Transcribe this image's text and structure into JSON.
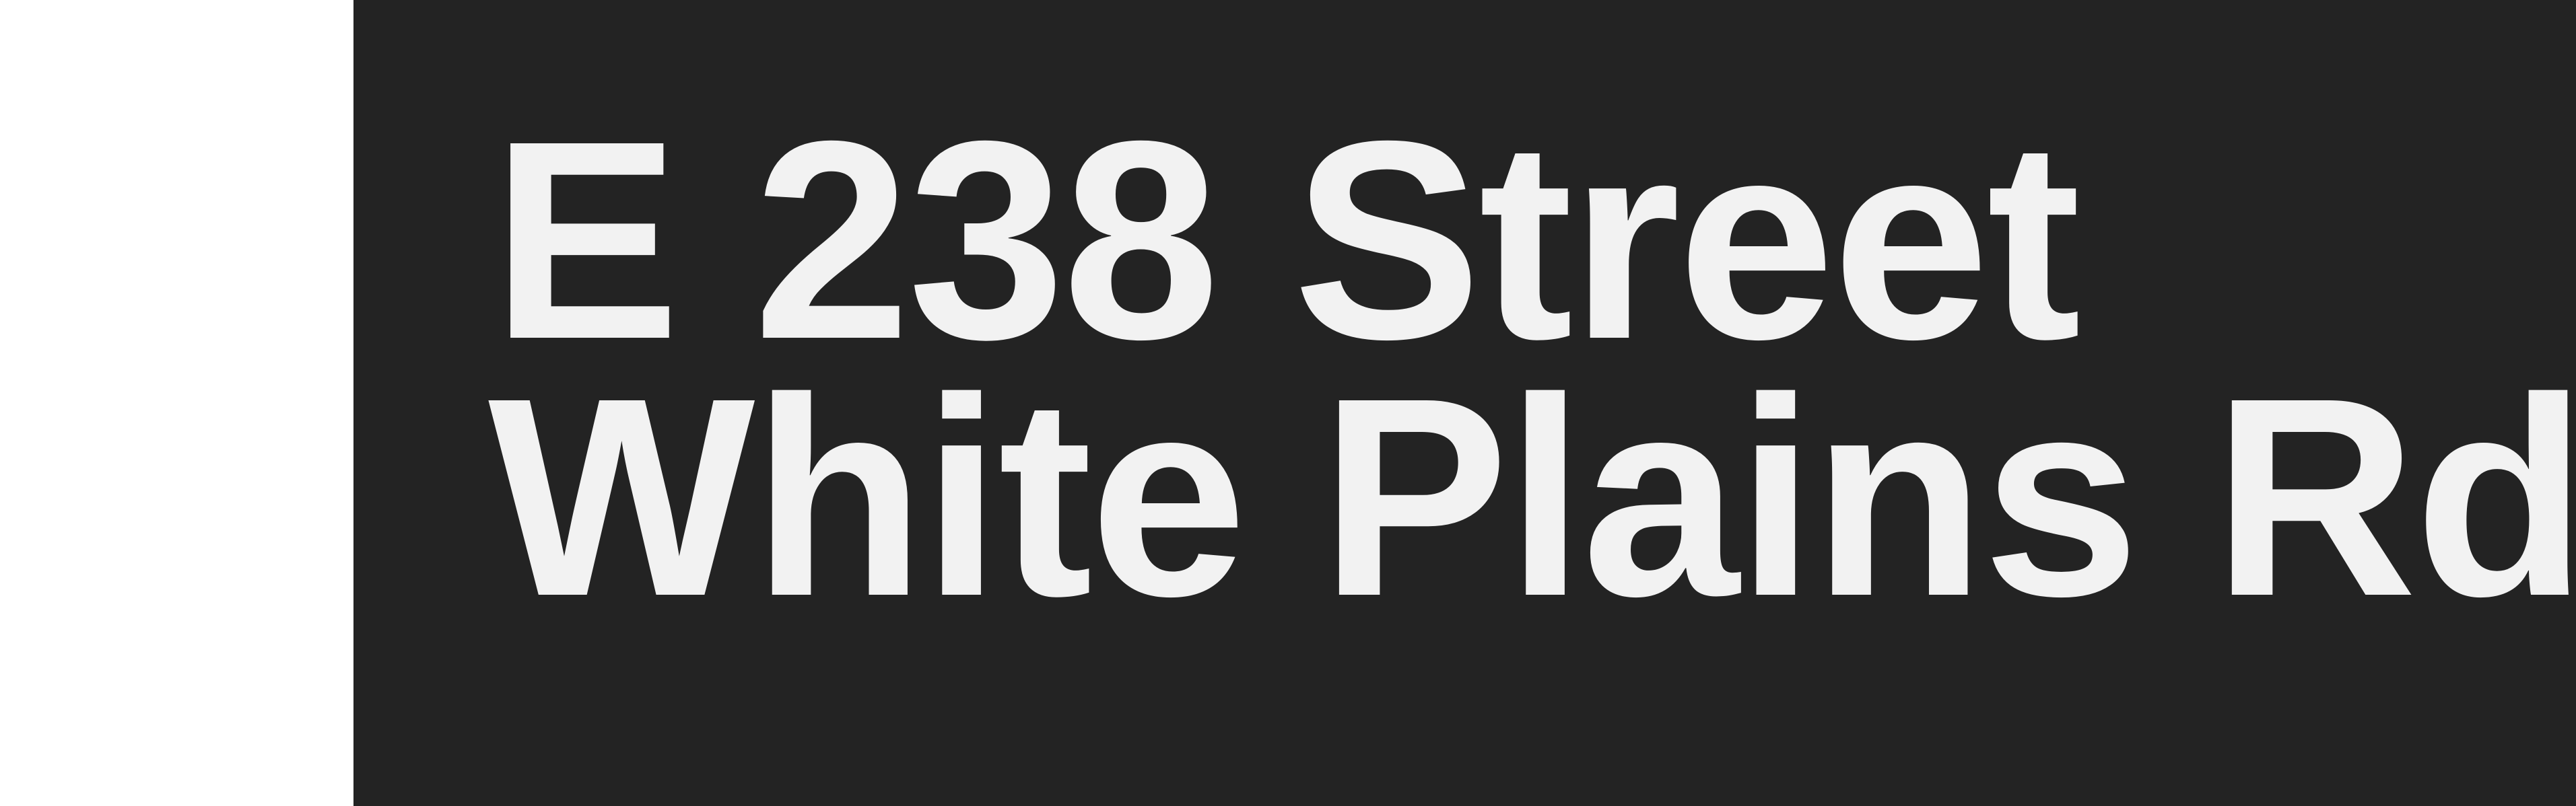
{
  "sign": {
    "line1": "E 238 Street",
    "line2": "White Plains Rd",
    "colors": {
      "panel": "#232323",
      "text": "#f2f2f2",
      "margin": "#ffffff"
    }
  }
}
